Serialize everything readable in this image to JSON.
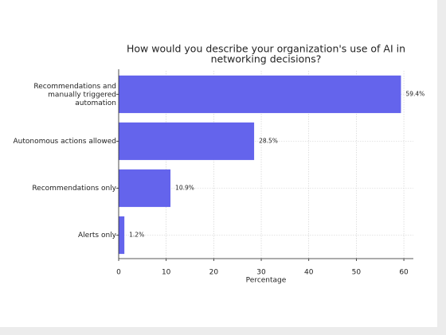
{
  "chart_data": {
    "type": "barh",
    "title": [
      "How would you describe your organization's use of AI in",
      "networking decisions?"
    ],
    "categories": [
      "Recommendations and\nmanually triggered\nautomation",
      "Autonomous actions allowed",
      "Recommendations only",
      "Alerts only"
    ],
    "values": [
      59.4,
      28.5,
      10.9,
      1.2
    ],
    "value_labels": [
      "59.4%",
      "28.5%",
      "10.9%",
      "1.2%"
    ],
    "color": "#6464ec",
    "xlabel": "Percentage",
    "xlim": [
      0,
      62
    ],
    "xticks": [
      0,
      10,
      20,
      30,
      40,
      50,
      60
    ],
    "grid": true
  }
}
